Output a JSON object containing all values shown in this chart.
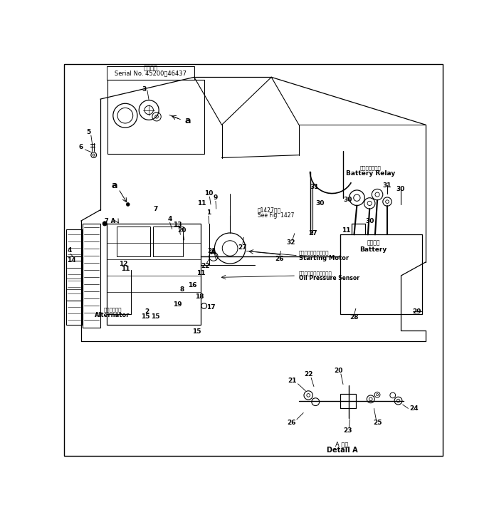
{
  "bg_color": "#ffffff",
  "fig_width": 6.94,
  "fig_height": 7.23,
  "title_line1": "適用号等",
  "title_line2": "Serial No. 45200～46437",
  "battery_relay_jp": "バッテリリレー",
  "battery_relay_en": "Battery Relay",
  "battery_jp": "バッテリ",
  "battery_en": "Battery",
  "starting_motor_jp": "スターティングモータ",
  "starting_motor_en": "Starting Motor",
  "oil_pressure_jp": "オイルプレッシャセンサ",
  "oil_pressure_en": "Oil Pressure Sensor",
  "alternator_jp": "オルタネータ",
  "alternator_en": "Alternator",
  "see_fig_jp": "囱1427参照",
  "see_fig_en": "See Fig. 1427",
  "detail_a_jp": "A 詳細",
  "detail_a_en": "Detail A"
}
